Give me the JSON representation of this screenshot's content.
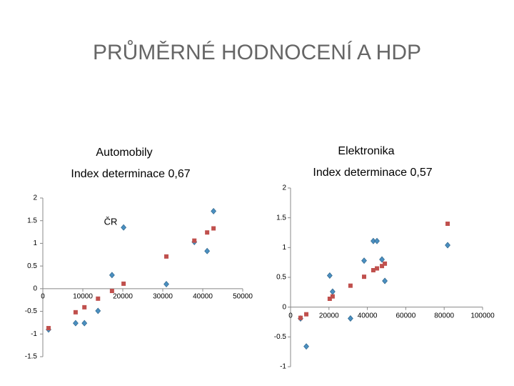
{
  "title": "PRŮMĚRNÉ HODNOCENÍ A HDP",
  "chart_data": [
    {
      "type": "scatter",
      "title": "Automobily",
      "subtitle": "Index determinace 0,67",
      "annotation": "ČR",
      "x": [
        1430,
        8200,
        10400,
        13800,
        17300,
        20200,
        30900,
        37900,
        41100,
        42700
      ],
      "series": [
        {
          "color": "#4a8fc0",
          "marker": "diamond",
          "values": [
            -0.9,
            -0.76,
            -0.76,
            -0.49,
            0.3,
            1.35,
            0.1,
            1.03,
            0.83,
            1.71
          ]
        },
        {
          "color": "#c0504d",
          "marker": "square",
          "values": [
            -0.87,
            -0.52,
            -0.41,
            -0.22,
            -0.05,
            0.11,
            0.71,
            1.06,
            1.24,
            1.33
          ]
        }
      ],
      "xlim": [
        0,
        50000
      ],
      "xticks": [
        0,
        10000,
        20000,
        30000,
        40000,
        50000
      ],
      "ylim": [
        -1.5,
        2
      ],
      "yticks": [
        -1.5,
        -1,
        -0.5,
        0,
        0.5,
        1,
        1.5,
        2
      ]
    },
    {
      "type": "scatter",
      "title": "Elektronika",
      "subtitle": "Index determinace 0,57",
      "x": [
        5200,
        8200,
        20400,
        21900,
        31200,
        38300,
        43100,
        45000,
        47600,
        49100,
        81800
      ],
      "series": [
        {
          "color": "#4a8fc0",
          "marker": "diamond",
          "values": [
            -0.19,
            -0.66,
            0.53,
            0.26,
            -0.19,
            0.78,
            1.11,
            1.11,
            0.8,
            0.44,
            1.04
          ]
        },
        {
          "color": "#c0504d",
          "marker": "square",
          "values": [
            -0.18,
            -0.12,
            0.14,
            0.18,
            0.36,
            0.51,
            0.62,
            0.65,
            0.69,
            0.73,
            1.4
          ]
        }
      ],
      "xlim": [
        0,
        100000
      ],
      "xticks": [
        0,
        20000,
        40000,
        60000,
        80000,
        100000
      ],
      "ylim": [
        -1,
        2
      ],
      "yticks": [
        -1,
        -0.5,
        0,
        0.5,
        1,
        1.5,
        2
      ]
    }
  ]
}
